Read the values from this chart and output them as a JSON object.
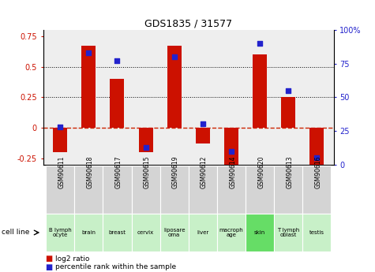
{
  "title": "GDS1835 / 31577",
  "samples": [
    "GSM90611",
    "GSM90618",
    "GSM90617",
    "GSM90615",
    "GSM90619",
    "GSM90612",
    "GSM90614",
    "GSM90620",
    "GSM90613",
    "GSM90616"
  ],
  "cell_lines": [
    "B lymph\nocyte",
    "brain",
    "breast",
    "cervix",
    "liposare\noma",
    "liver",
    "macroph\nage",
    "skin",
    "T lymph\noblast",
    "testis"
  ],
  "cell_line_colors": [
    "#c8f0c8",
    "#c8f0c8",
    "#c8f0c8",
    "#c8f0c8",
    "#c8f0c8",
    "#c8f0c8",
    "#c8f0c8",
    "#66dd66",
    "#c8f0c8",
    "#c8f0c8"
  ],
  "log2_ratios": [
    -0.2,
    0.67,
    0.4,
    -0.2,
    0.67,
    -0.13,
    -0.3,
    0.6,
    0.25,
    -0.3
  ],
  "percentile_ranks": [
    28,
    83,
    77,
    13,
    80,
    30,
    10,
    90,
    55,
    5
  ],
  "bar_color": "#cc1100",
  "dot_color": "#2222cc",
  "ylim_left": [
    -0.3,
    0.8
  ],
  "ylim_right": [
    0,
    100
  ],
  "yticks_left": [
    -0.25,
    0,
    0.25,
    0.5,
    0.75
  ],
  "yticks_right": [
    0,
    25,
    50,
    75,
    100
  ],
  "hline_color": "#cc2200",
  "dotted_lines": [
    0.25,
    0.5
  ],
  "plot_bg": "#eeeeee"
}
